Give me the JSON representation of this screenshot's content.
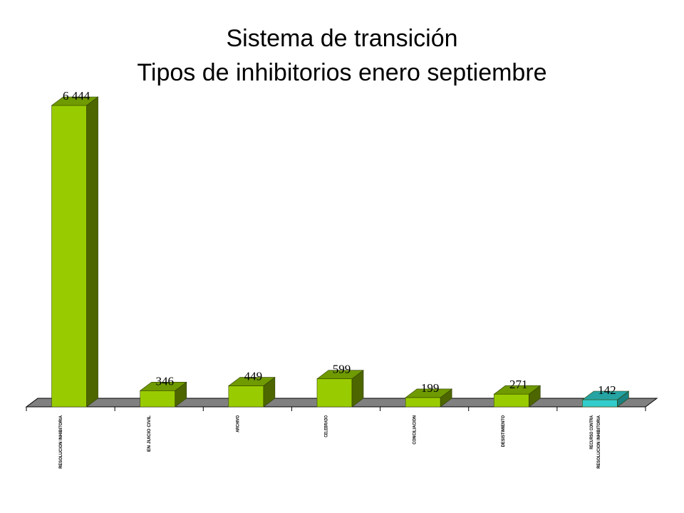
{
  "title": {
    "line1": "Sistema de transición",
    "line2": "Tipos de inhibitorios enero septiembre"
  },
  "chart_data": {
    "type": "bar",
    "style": "3d",
    "categories": [
      "RESOLUCION INHIBITORIA",
      "EN JUICIO CIVIL",
      "ARCHIVO",
      "CELEBRADO",
      "CONCILIACION",
      "DESISTIMIENTO",
      "RECURSO CONTRA RESOLUCION INHIBITORIA"
    ],
    "values": [
      6444,
      346,
      449,
      599,
      199,
      271,
      142
    ],
    "value_labels": [
      "6 444",
      "346",
      "449",
      "599",
      "199",
      "271",
      "142"
    ],
    "ylim": [
      0,
      6444
    ],
    "grid": false,
    "colors": {
      "bar_front": "#99cc00",
      "bar_side": "#4d6600",
      "bar_top": "#6f9a00",
      "highlight_front": "#33cccc",
      "highlight_side": "#1a8080",
      "highlight_top": "#26a3a3",
      "floor": "#808080",
      "floor_edge": "#000000"
    },
    "highlight_index": 6
  }
}
